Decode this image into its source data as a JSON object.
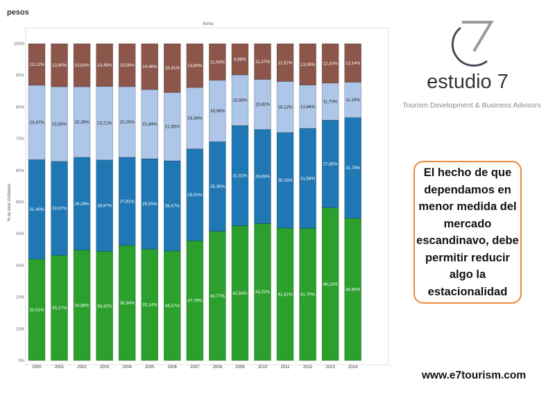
{
  "header": {
    "label": "pesos"
  },
  "chart_data": {
    "type": "bar",
    "stacked": true,
    "title": "fecha",
    "ylabel": "% de total Visitantes",
    "xlabel": "",
    "ylim": [
      0,
      100
    ],
    "yticks": [
      "0%",
      "10%",
      "20%",
      "30%",
      "40%",
      "50%",
      "60%",
      "70%",
      "80%",
      "90%",
      "100%"
    ],
    "categories": [
      "2000",
      "2001",
      "2002",
      "2003",
      "2004",
      "2005",
      "2006",
      "2007",
      "2008",
      "2009",
      "2010",
      "2011",
      "2012",
      "2013",
      "2014"
    ],
    "series": [
      {
        "name": "green",
        "color": "#2ca02c",
        "label_color": "#ffffff",
        "values": [
          32.01,
          33.17,
          34.85,
          34.42,
          36.34,
          35.14,
          34.57,
          37.78,
          40.77,
          42.54,
          43.22,
          41.81,
          41.7,
          48.22,
          44.9
        ],
        "labels": [
          "32,01%",
          "33,17%",
          "34,85%",
          "34,42%",
          "36,34%",
          "35,14%",
          "34,57%",
          "37,78%",
          "40,77%",
          "42,54%",
          "43,22%",
          "41,81%",
          "41,70%",
          "48,22%",
          "44,90%"
        ]
      },
      {
        "name": "dark-blue",
        "color": "#1f77b4",
        "label_color": "#ffffff",
        "values": [
          31.4,
          29.67,
          29.28,
          28.87,
          27.81,
          28.55,
          28.47,
          29.02,
          28.3,
          31.62,
          29.69,
          30.15,
          31.58,
          27.65,
          31.76
        ],
        "labels": [
          "31,40%",
          "29,67%",
          "29,28%",
          "28,87%",
          "27,81%",
          "28,55%",
          "28,47%",
          "29,02%",
          "28,30%",
          "31,62%",
          "29,69%",
          "30,15%",
          "31,58%",
          "27,65%",
          "31,76%"
        ]
      },
      {
        "name": "light-blue",
        "color": "#aec7e8",
        "label_color": "#222222",
        "values": [
          23.47,
          23.56,
          22.26,
          23.21,
          22.29,
          21.84,
          21.55,
          19.36,
          19.38,
          15.98,
          15.82,
          16.12,
          13.66,
          11.7,
          11.19
        ],
        "labels": [
          "23,47%",
          "23,56%",
          "22,26%",
          "23,21%",
          "22,29%",
          "21,84%",
          "21,55%",
          "19,36%",
          "19,38%",
          "15,98%",
          "15,82%",
          "16,12%",
          "13,66%",
          "11,70%",
          "11,19%"
        ]
      },
      {
        "name": "brown",
        "color": "#8c564b",
        "label_color": "#ffffff",
        "values": [
          13.12,
          13.6,
          13.61,
          13.49,
          13.56,
          14.46,
          15.41,
          13.84,
          11.54,
          9.86,
          11.27,
          11.91,
          13.06,
          12.43,
          12.14
        ],
        "labels": [
          "13,12%",
          "13,60%",
          "13,61%",
          "13,49%",
          "13,56%",
          "14,46%",
          "15,41%",
          "13,84%",
          "11,54%",
          "9,86%",
          "11,27%",
          "11,91%",
          "13,06%",
          "12,43%",
          "12,14%"
        ]
      }
    ]
  },
  "logo": {
    "name": "estudio 7",
    "tagline": "Tourism Development & Business Advisors"
  },
  "callout": {
    "text": "El hecho de que dependamos en menor medida del mercado escandinavo, debe permitir reducir algo la estacionalidad"
  },
  "footer": {
    "website": "www.e7tourism.com"
  }
}
